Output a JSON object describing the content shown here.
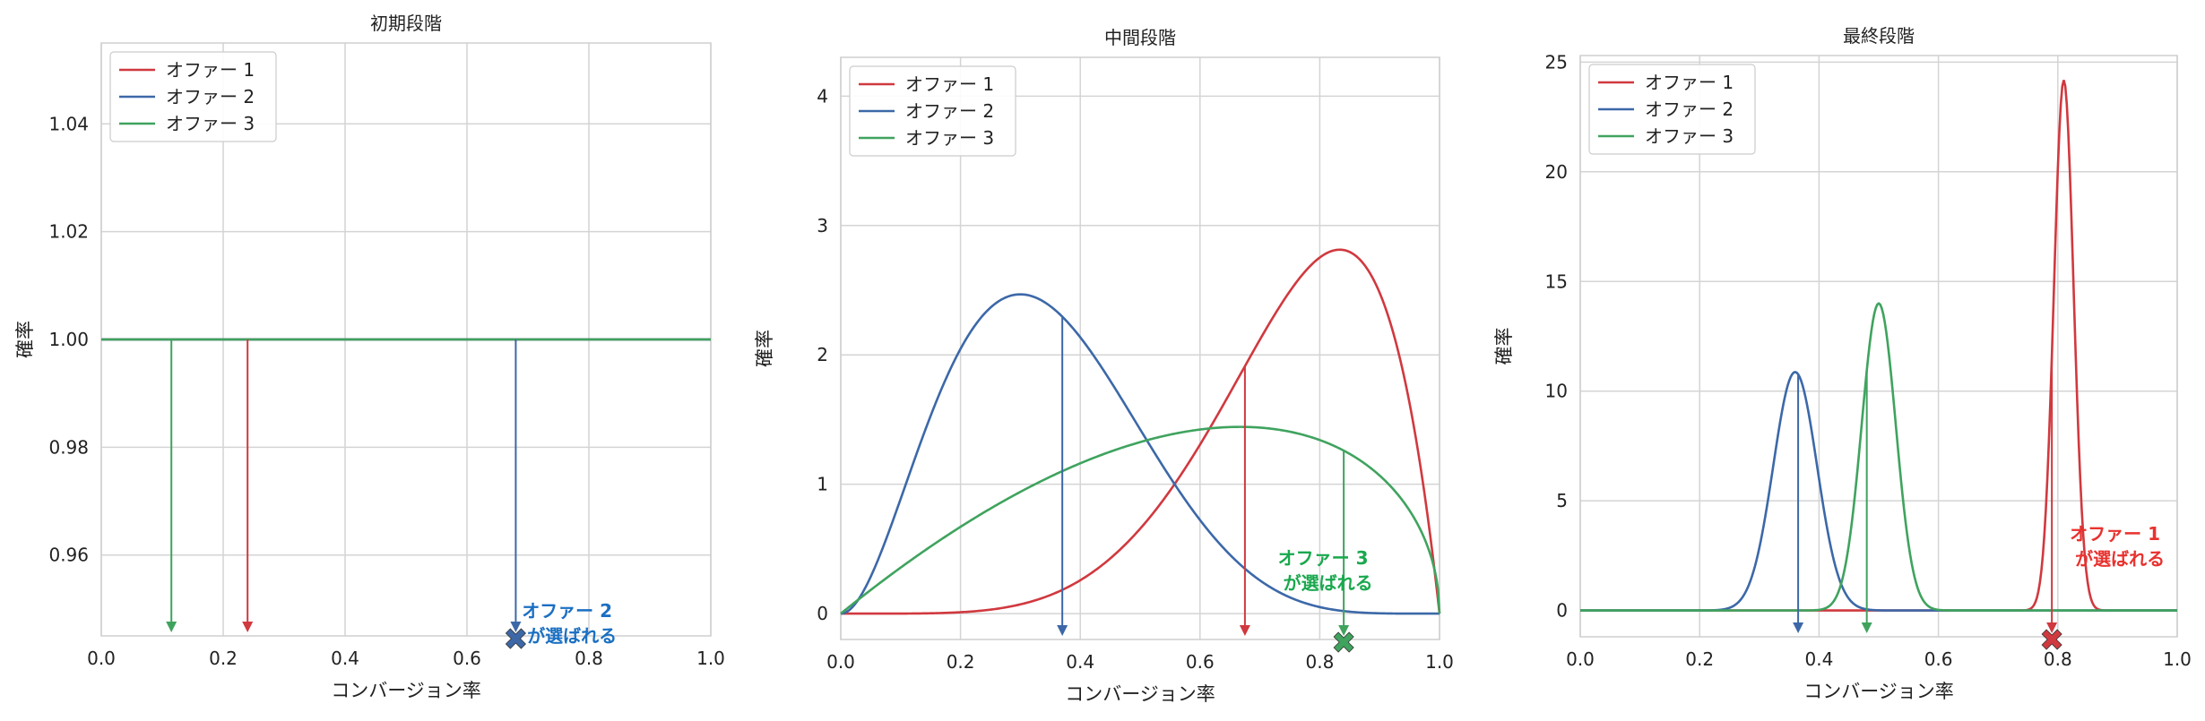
{
  "chart_data": [
    {
      "type": "line",
      "title": "初期段階",
      "xlabel": "コンバージョン率",
      "ylabel": "確率",
      "xlim": [
        0.0,
        1.0
      ],
      "ylim": [
        0.945,
        1.055
      ],
      "xticks": [
        0.0,
        0.2,
        0.4,
        0.6,
        0.8,
        1.0
      ],
      "xtick_labels": [
        "0.0",
        "0.2",
        "0.4",
        "0.6",
        "0.8",
        "1.0"
      ],
      "yticks": [
        0.96,
        0.98,
        1.0,
        1.02,
        1.04
      ],
      "ytick_labels": [
        "0.96",
        "0.98",
        "1.00",
        "1.02",
        "1.04"
      ],
      "grid": true,
      "legend_position": "top-left",
      "series": [
        {
          "name": "オファー 1",
          "color": "#d0393f",
          "dist": "uniform",
          "sample": 0.24
        },
        {
          "name": "オファー 2",
          "color": "#3c68a8",
          "dist": "uniform",
          "sample": 0.68
        },
        {
          "name": "オファー 3",
          "color": "#3fa35e",
          "dist": "uniform",
          "sample": 0.115
        }
      ],
      "selected_index": 1,
      "annotation": {
        "lines": [
          "オファー 2",
          "が選ばれる"
        ],
        "color": "#1a6fc2",
        "x": 0.69,
        "y": 0.9485
      }
    },
    {
      "type": "line",
      "title": "中間段階",
      "xlabel": "コンバージョン率",
      "ylabel": "確率",
      "xlim": [
        0.0,
        1.0
      ],
      "ylim": [
        -0.2,
        4.3
      ],
      "xticks": [
        0.0,
        0.2,
        0.4,
        0.6,
        0.8,
        1.0
      ],
      "xtick_labels": [
        "0.0",
        "0.2",
        "0.4",
        "0.6",
        "0.8",
        "1.0"
      ],
      "yticks": [
        0,
        1,
        2,
        3,
        4
      ],
      "ytick_labels": [
        "0",
        "1",
        "2",
        "3",
        "4"
      ],
      "grid": true,
      "legend_position": "top-left",
      "series": [
        {
          "name": "オファー 1",
          "color": "#d0393f",
          "dist": "beta",
          "a": 6,
          "b": 2,
          "sample": 0.675
        },
        {
          "name": "オファー 2",
          "color": "#3c68a8",
          "dist": "beta",
          "a": 3,
          "b": 5.67,
          "sample": 0.37
        },
        {
          "name": "オファー 3",
          "color": "#3fa35e",
          "dist": "beta",
          "a": 2,
          "b": 1.5,
          "sample": 0.84
        }
      ],
      "selected_index": 2,
      "annotation": {
        "lines": [
          "オファー 3",
          "が選ばれる"
        ],
        "color": "#1aa84e",
        "x": 0.73,
        "y": 0.38
      }
    },
    {
      "type": "line",
      "title": "最終段階",
      "xlabel": "コンバージョン率",
      "ylabel": "確率",
      "xlim": [
        0.0,
        1.0
      ],
      "ylim": [
        -1.2,
        25.3
      ],
      "xticks": [
        0.0,
        0.2,
        0.4,
        0.6,
        0.8,
        1.0
      ],
      "xtick_labels": [
        "0.0",
        "0.2",
        "0.4",
        "0.6",
        "0.8",
        "1.0"
      ],
      "yticks": [
        0,
        5,
        10,
        15,
        20,
        25
      ],
      "ytick_labels": [
        "0",
        "5",
        "10",
        "15",
        "20",
        "25"
      ],
      "grid": true,
      "legend_position": "top-left",
      "series": [
        {
          "name": "オファー 1",
          "color": "#d0393f",
          "dist": "normal",
          "mu": 0.81,
          "sd": 0.0165,
          "sample": 0.79
        },
        {
          "name": "オファー 2",
          "color": "#3c68a8",
          "dist": "normal",
          "mu": 0.36,
          "sd": 0.0367,
          "sample": 0.365
        },
        {
          "name": "オファー 3",
          "color": "#3fa35e",
          "dist": "normal",
          "mu": 0.5,
          "sd": 0.0285,
          "sample": 0.48
        }
      ],
      "selected_index": 0,
      "annotation": {
        "lines": [
          "オファー 1",
          "が選ばれる"
        ],
        "color": "#e8322f",
        "x": 0.82,
        "y": 3.2
      }
    }
  ]
}
